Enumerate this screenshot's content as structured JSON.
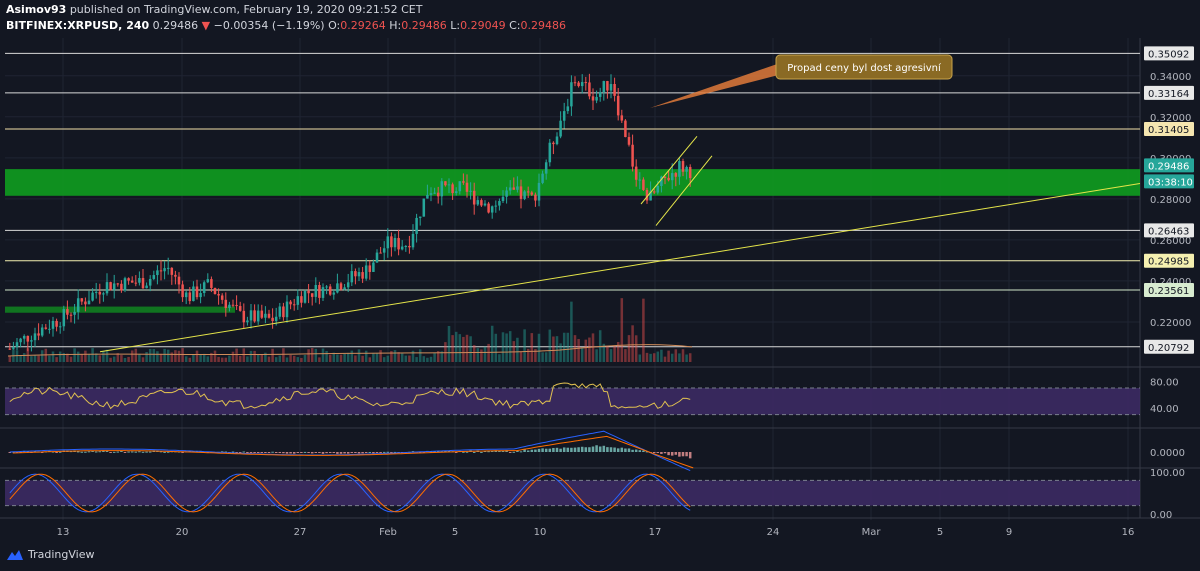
{
  "header": {
    "publisher": "Asimov93",
    "publish_text": "published on TradingView.com, February 19, 2020 09:21:52 CET",
    "symbol": "BITFINEX:XRPUSD, 240",
    "last": "0.29486",
    "arrow": "▼",
    "change": "−0.00354 (−1.19%)",
    "o_label": "O:",
    "o": "0.29264",
    "h_label": "H:",
    "h": "0.29486",
    "l_label": "L:",
    "l": "0.29049",
    "c_label": "C:",
    "c": "0.29486"
  },
  "annotation": "Propad ceny byl dost agresivní",
  "logo_text": "TradingView",
  "colors": {
    "background": "#131722",
    "up": "#26a69a",
    "down": "#ef5350",
    "support_zone": "#0f9d1f",
    "trendline": "#e5e54a",
    "rsi_band": "#3c2a63",
    "callout": "#8a6a24"
  },
  "chart_data": {
    "type": "candlestick",
    "price_axis": {
      "range": [
        0.2,
        0.355
      ],
      "ticks": [
        "0.34000",
        "0.32000",
        "0.30000",
        "0.28000",
        "0.26000",
        "0.24000",
        "0.22000"
      ],
      "level_labels": [
        {
          "value": "0.35092",
          "color": "#e8e8e8"
        },
        {
          "value": "0.33164",
          "color": "#e8e8e8"
        },
        {
          "value": "0.31405",
          "color": "#f5e6b0"
        },
        {
          "value": "0.29486",
          "color": "#26a69a",
          "current": true
        },
        {
          "value": "03:38:10",
          "color": "#26a69a",
          "timer": true
        },
        {
          "value": "0.26463",
          "color": "#e8e8e8"
        },
        {
          "value": "0.24985",
          "color": "#f5f0b0"
        },
        {
          "value": "0.23561",
          "color": "#d8ecd0"
        },
        {
          "value": "0.20792",
          "color": "#e8e8e8"
        }
      ]
    },
    "horizontal_levels": [
      0.35092,
      0.33164,
      0.31405,
      0.26463,
      0.24985,
      0.23561,
      0.20792
    ],
    "support_zone": [
      0.2815,
      0.2945
    ],
    "x_axis": [
      "13",
      "20",
      "27",
      "Feb",
      "5",
      "10",
      "17",
      "24",
      "Mar",
      "5",
      "9",
      "16"
    ],
    "rsi": {
      "ticks": [
        "80.00",
        "40.00"
      ]
    },
    "macd": {
      "ticks": [
        "0.0000"
      ]
    },
    "stoch": {
      "ticks": [
        "100.00",
        "0.00"
      ]
    }
  }
}
